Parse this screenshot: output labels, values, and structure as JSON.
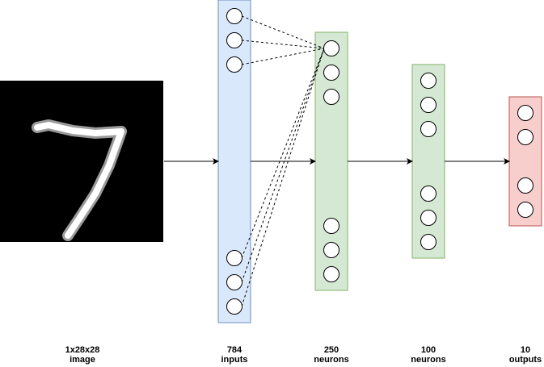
{
  "diagram": {
    "image_digit": "7",
    "captions": [
      {
        "line1": "1x28x28",
        "line2": "image"
      },
      {
        "line1": "784",
        "line2": "inputs"
      },
      {
        "line1": "250",
        "line2": "neurons"
      },
      {
        "line1": "100",
        "line2": "neurons"
      },
      {
        "line1": "10",
        "line2": "outputs"
      }
    ],
    "layers": [
      {
        "name": "input-layer",
        "fill": "#dae8fc",
        "stroke": "#6c8ebf"
      },
      {
        "name": "hidden-layer-1",
        "fill": "#d5e8d4",
        "stroke": "#82b366"
      },
      {
        "name": "hidden-layer-2",
        "fill": "#d5e8d4",
        "stroke": "#82b366"
      },
      {
        "name": "output-layer",
        "fill": "#f8cecc",
        "stroke": "#b85450"
      }
    ],
    "image_colors": {
      "background": "#000000",
      "digit": "#ffffff"
    }
  }
}
